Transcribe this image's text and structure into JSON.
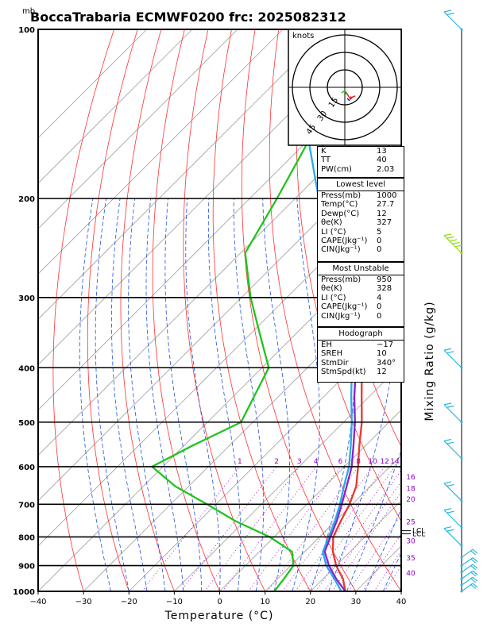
{
  "header": {
    "unit": "mb",
    "title": "BoccaTrabaria ECMWF0200 frc: 2025082312"
  },
  "axes": {
    "x_label": "Temperature (°C)",
    "x_ticks": [
      "−40",
      "−30",
      "−20",
      "−10",
      "0",
      "10",
      "20",
      "30",
      "40"
    ],
    "y_ticks": [
      "100",
      "200",
      "300",
      "400",
      "500",
      "600",
      "700",
      "800",
      "900",
      "1000"
    ],
    "right_label": "Mixing Ratio (g/kg)"
  },
  "chart_data": {
    "type": "skew-t",
    "title": "BoccaTrabaria ECMWF0200 frc: 2025082312",
    "xlabel": "Temperature (°C)",
    "ylabel": "mb",
    "xlim": [
      -40,
      40
    ],
    "ylim": [
      1000,
      100
    ],
    "y_scale": "log",
    "isobars": [
      100,
      200,
      300,
      400,
      500,
      600,
      700,
      800,
      900,
      1000
    ],
    "mixing_ratio_labels": [
      "1",
      "2",
      "3",
      "4",
      "6",
      "8",
      "10",
      "12",
      "14",
      "16",
      "18",
      "20",
      "25",
      "30",
      "35",
      "40"
    ],
    "series": [
      {
        "name": "Temperature",
        "color": "#e8382e",
        "points": [
          [
            1000,
            27.7
          ],
          [
            950,
            24.4
          ],
          [
            900,
            20.0
          ],
          [
            850,
            16.2
          ],
          [
            800,
            13.0
          ],
          [
            750,
            11.2
          ],
          [
            700,
            9.4
          ],
          [
            650,
            6.9
          ],
          [
            600,
            3.0
          ],
          [
            550,
            -1.4
          ],
          [
            500,
            -6.0
          ],
          [
            450,
            -11.7
          ],
          [
            400,
            -18.0
          ],
          [
            350,
            -25.8
          ],
          [
            300,
            -34.6
          ],
          [
            250,
            -44.3
          ],
          [
            220,
            -50.5
          ],
          [
            200,
            -54.0
          ],
          [
            150,
            -63.2
          ],
          [
            100,
            -70.5
          ]
        ]
      },
      {
        "name": "Dew point",
        "color": "#1fc41f",
        "points": [
          [
            1000,
            12.0
          ],
          [
            950,
            11.4
          ],
          [
            900,
            10.6
          ],
          [
            850,
            7.2
          ],
          [
            800,
            -1.0
          ],
          [
            750,
            -12.0
          ],
          [
            700,
            -22.0
          ],
          [
            650,
            -33.0
          ],
          [
            600,
            -42.4
          ],
          [
            550,
            -38.1
          ],
          [
            500,
            -32.6
          ],
          [
            450,
            -35.4
          ],
          [
            400,
            -38.5
          ],
          [
            350,
            -47.6
          ],
          [
            300,
            -58.0
          ],
          [
            250,
            -69.0
          ],
          [
            200,
            -74.0
          ],
          [
            150,
            -81.0
          ],
          [
            100,
            -87.0
          ]
        ]
      },
      {
        "name": "Parcel (virtual)",
        "color": "#8b22c8",
        "points": [
          [
            1000,
            27.7
          ],
          [
            950,
            22.9
          ],
          [
            900,
            18.4
          ],
          [
            850,
            14.4
          ],
          [
            800,
            12.4
          ],
          [
            750,
            10.3
          ],
          [
            700,
            7.7
          ],
          [
            650,
            4.8
          ],
          [
            600,
            1.6
          ],
          [
            550,
            -2.7
          ],
          [
            500,
            -7.5
          ],
          [
            450,
            -13.3
          ],
          [
            400,
            -19.3
          ],
          [
            350,
            -26.9
          ],
          [
            300,
            -36.6
          ],
          [
            250,
            -48.8
          ],
          [
            200,
            -62.3
          ],
          [
            150,
            -80.0
          ],
          [
            100,
            -98.0
          ]
        ]
      },
      {
        "name": "Parcel",
        "color": "#29a9e8",
        "points": [
          [
            1000,
            26.8
          ],
          [
            950,
            22.5
          ],
          [
            900,
            17.8
          ],
          [
            850,
            14.0
          ],
          [
            800,
            12.0
          ],
          [
            750,
            9.9
          ],
          [
            700,
            7.3
          ],
          [
            650,
            4.2
          ],
          [
            600,
            1.0
          ],
          [
            550,
            -3.3
          ],
          [
            500,
            -8.2
          ],
          [
            450,
            -14.0
          ],
          [
            400,
            -20.2
          ],
          [
            350,
            -28.2
          ],
          [
            300,
            -38.3
          ],
          [
            250,
            -50.8
          ],
          [
            200,
            -64.8
          ],
          [
            150,
            -83.0
          ],
          [
            100,
            -100.0
          ]
        ]
      }
    ],
    "lcl_labels": [
      "LCL",
      "LCL"
    ],
    "lcl_pressures": [
      780,
      790
    ]
  },
  "hodograph": {
    "unit": "knots",
    "rings": [
      "15",
      "30",
      "45"
    ]
  },
  "wind_barbs": {
    "pressures": [
      100,
      250,
      400,
      500,
      580,
      690,
      770,
      830,
      870,
      900,
      925,
      950,
      975,
      1000
    ]
  },
  "indices": {
    "k_label": "K",
    "k": "13",
    "tt_label": "TT",
    "tt": "40",
    "pw_label": "PW(cm)",
    "pw": "2.03"
  },
  "lowest": {
    "header": "Lowest level",
    "rows": [
      {
        "label": "Press(mb)",
        "value": "1000"
      },
      {
        "label": "Temp(°C)",
        "value": "27.7"
      },
      {
        "label": "Dewp(°C)",
        "value": "12"
      },
      {
        "label": "θe(K)",
        "value": "327"
      },
      {
        "label": "LI (°C)",
        "value": "5"
      },
      {
        "label": "CAPE(Jkg⁻¹)",
        "value": "0"
      },
      {
        "label": "CIN(Jkg⁻¹)",
        "value": "0"
      }
    ]
  },
  "unstable": {
    "header": "Most Unstable",
    "rows": [
      {
        "label": "Press(mb)",
        "value": "950"
      },
      {
        "label": "θe(K)",
        "value": "328"
      },
      {
        "label": "LI (°C)",
        "value": "4"
      },
      {
        "label": "CAPE(Jkg⁻¹)",
        "value": "0"
      },
      {
        "label": "CIN(Jkg⁻¹)",
        "value": "0"
      }
    ]
  },
  "hodo_table": {
    "header": "Hodograph",
    "rows": [
      {
        "label": "EH",
        "value": "−17"
      },
      {
        "label": "SREH",
        "value": "10"
      },
      {
        "label": "StmDir",
        "value": "340°"
      },
      {
        "label": "StmSpd(kt)",
        "value": "12"
      }
    ]
  },
  "colors": {
    "isotherm": "#a0a0a0",
    "dry_adiabat": "#ff3030",
    "moist_adiabat": "#2050e0",
    "mixing_ratio": "#8b00c8",
    "barb": "#29b7e0",
    "barb_green": "#88e000"
  }
}
